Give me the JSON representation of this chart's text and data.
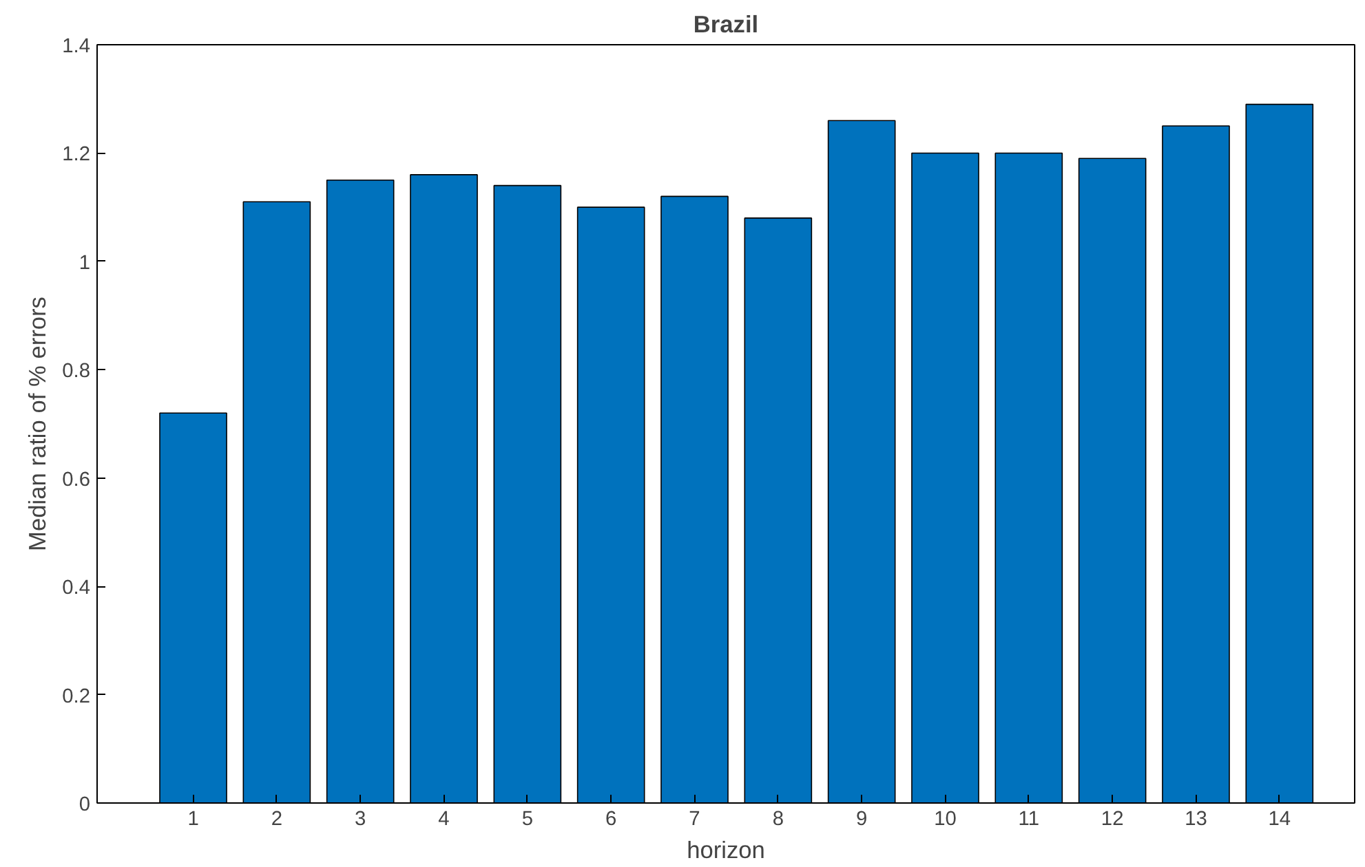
{
  "chart_data": {
    "type": "bar",
    "title": "Brazil",
    "xlabel": "horizon",
    "ylabel": "Median ratio of % errors",
    "x": [
      1,
      2,
      3,
      4,
      5,
      6,
      7,
      8,
      9,
      10,
      11,
      12,
      13,
      14
    ],
    "values": [
      0.72,
      1.11,
      1.15,
      1.16,
      1.14,
      1.1,
      1.12,
      1.08,
      1.26,
      1.2,
      1.2,
      1.19,
      1.25,
      1.29
    ],
    "color": "#0072bd",
    "xlim": [
      -0.15,
      14.9
    ],
    "xticks": [
      1,
      2,
      3,
      4,
      5,
      6,
      7,
      8,
      9,
      10,
      11,
      12,
      13,
      14
    ],
    "ylim": [
      0,
      1.4
    ],
    "yticks": [
      0,
      0.2,
      0.4,
      0.6,
      0.8,
      1,
      1.2,
      1.4
    ],
    "grid": false
  }
}
